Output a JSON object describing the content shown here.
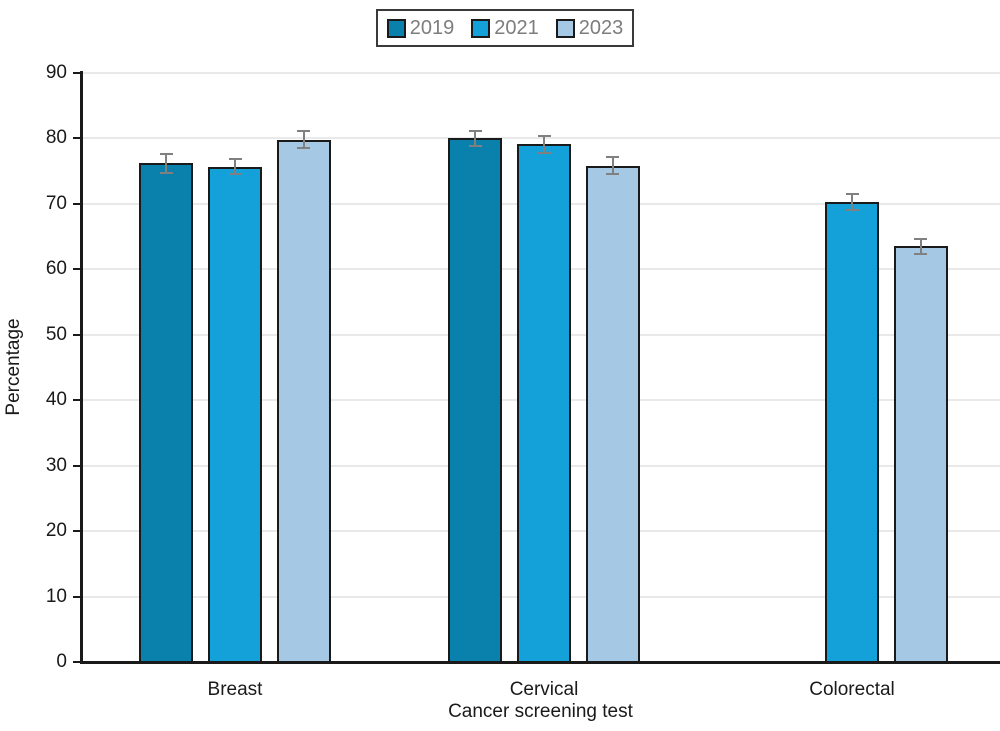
{
  "chart_data": {
    "type": "bar",
    "title": "",
    "xlabel": "Cancer screening test",
    "ylabel": "Percentage",
    "ylim": [
      0,
      90
    ],
    "ytick_interval": 10,
    "grid": "horizontal",
    "legend_position": "top-center",
    "categories": [
      "Breast",
      "Cervical",
      "Colorectal"
    ],
    "series": [
      {
        "name": "2019",
        "color": "#0a80ad",
        "values": [
          76.2,
          80.0,
          null
        ],
        "error_margins": [
          1.4,
          1.2,
          null
        ]
      },
      {
        "name": "2021",
        "color": "#14a0d9",
        "values": [
          75.7,
          79.1,
          70.3
        ],
        "error_margins": [
          1.2,
          1.3,
          1.2
        ]
      },
      {
        "name": "2023",
        "color": "#a5c8e5",
        "values": [
          79.8,
          75.8,
          63.5
        ],
        "error_margins": [
          1.3,
          1.3,
          1.2
        ]
      }
    ],
    "error_bars": true,
    "colors": {
      "bar_outline": "#1a1a1a",
      "error_bar": "#808080",
      "axis": "#1a1a1a",
      "gridline": "#e9e9e9",
      "legend_text": "#7d7d7d",
      "tick_text": "#1a1a1a"
    }
  }
}
